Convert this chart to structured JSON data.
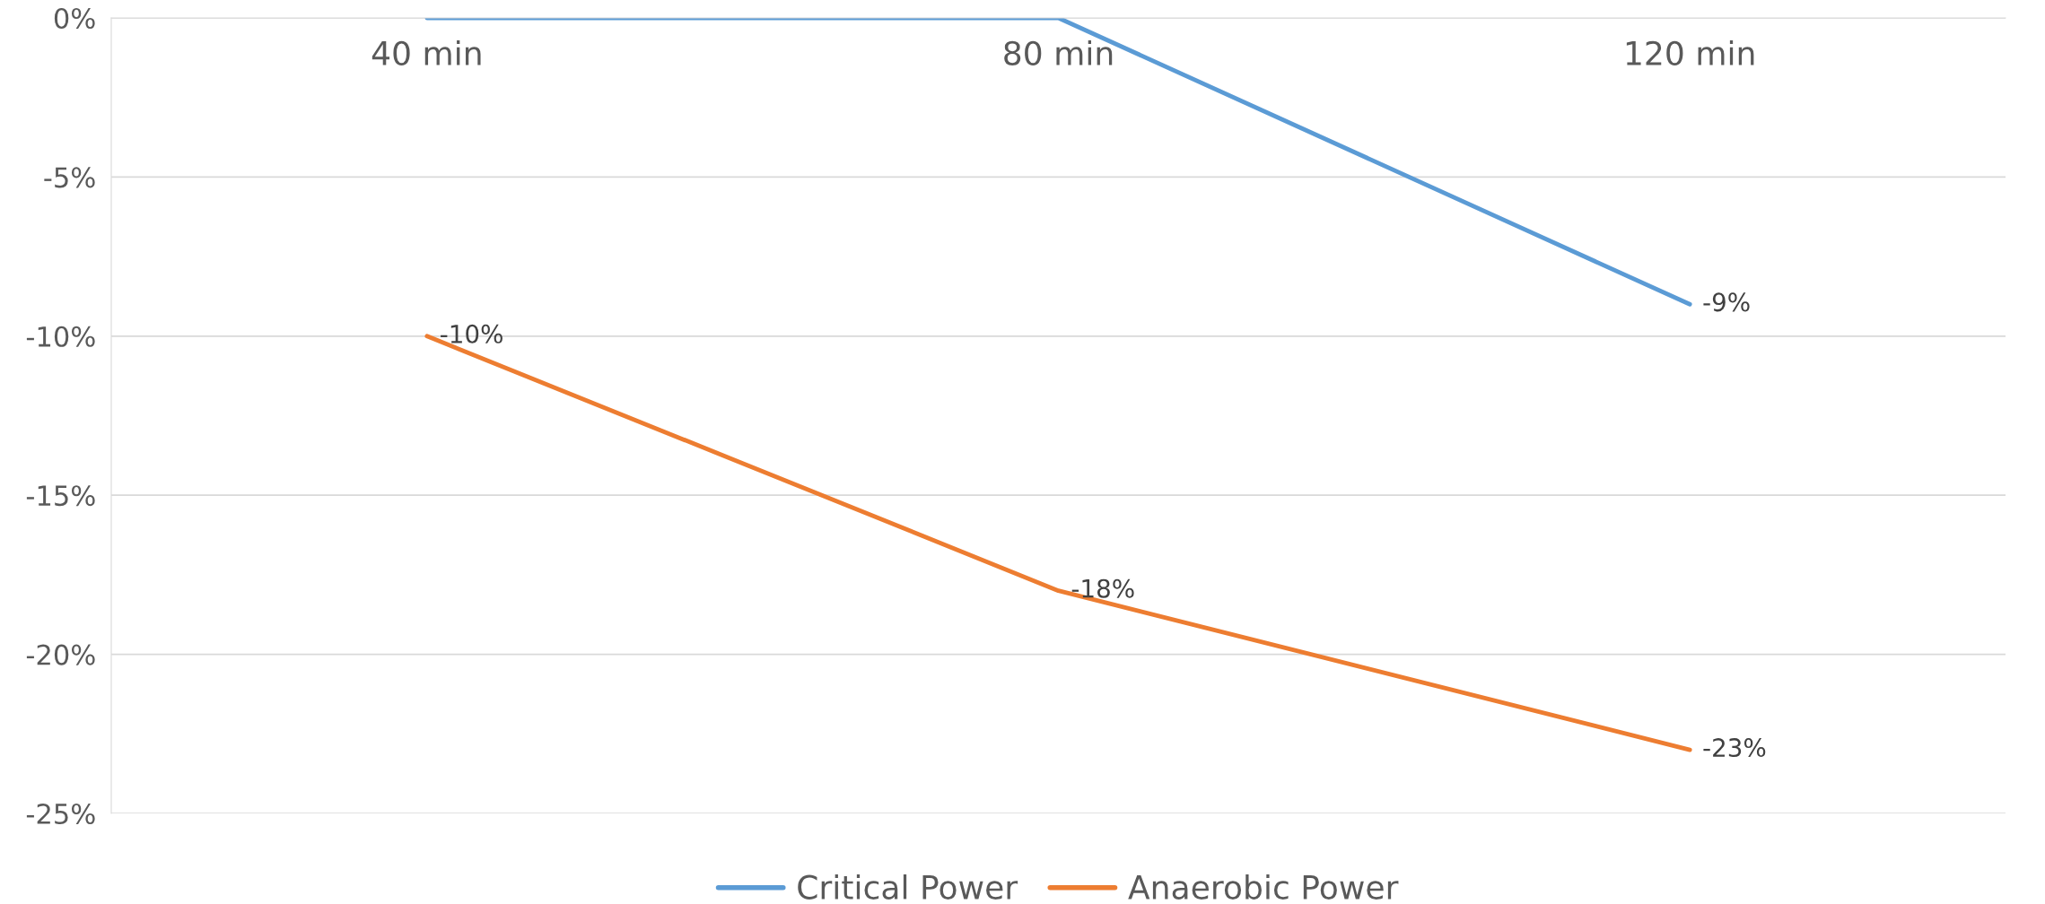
{
  "chart_data": {
    "type": "line",
    "categories": [
      "40 min",
      "80 min",
      "120 min"
    ],
    "series": [
      {
        "name": "Critical Power",
        "color": "#5b9bd5",
        "values": [
          0,
          0,
          -9
        ],
        "value_labels": [
          null,
          null,
          "-9%"
        ]
      },
      {
        "name": "Anaerobic Power",
        "color": "#ed7d31",
        "values": [
          -10,
          -18,
          -23
        ],
        "value_labels": [
          "-10%",
          "-18%",
          "-23%"
        ]
      }
    ],
    "ylim": [
      -25,
      0
    ],
    "yticks": [
      {
        "value": 0,
        "label": "0%"
      },
      {
        "value": -5,
        "label": "-5%"
      },
      {
        "value": -10,
        "label": "-10%"
      },
      {
        "value": -15,
        "label": "-15%"
      },
      {
        "value": -20,
        "label": "-20%"
      },
      {
        "value": -25,
        "label": "-25%"
      }
    ],
    "grid": "y",
    "legend": "bottom",
    "marker": "none",
    "line_style": "solid"
  }
}
